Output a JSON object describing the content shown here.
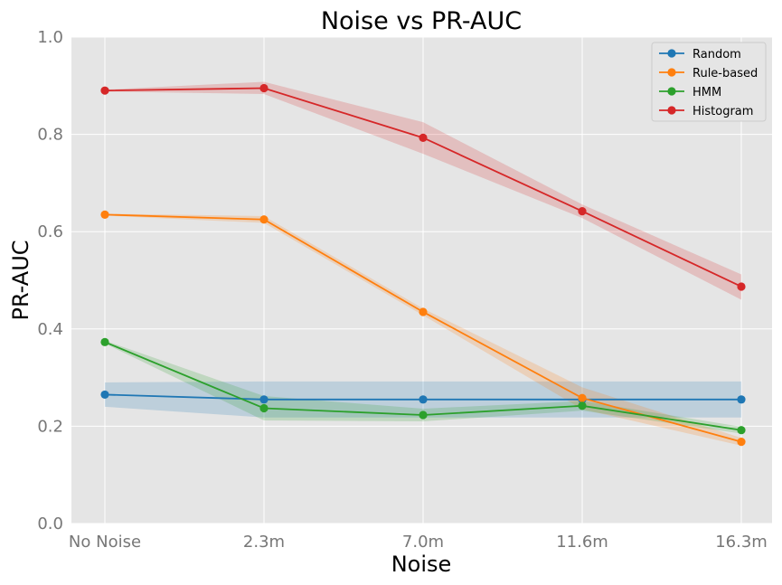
{
  "chart_data": {
    "type": "line",
    "title": "Noise vs PR-AUC",
    "xlabel": "Noise",
    "ylabel": "PR-AUC",
    "categories": [
      "No Noise",
      "2.3m",
      "7.0m",
      "11.6m",
      "16.3m"
    ],
    "ylim": [
      0.0,
      1.0
    ],
    "yticks": [
      "0.0",
      "0.2",
      "0.4",
      "0.6",
      "0.8",
      "1.0"
    ],
    "grid": true,
    "legend_position": "top-right",
    "series": [
      {
        "name": "Random",
        "color": "#1f77b4",
        "values": [
          0.265,
          0.255,
          0.255,
          0.255,
          0.255
        ],
        "lower": [
          0.24,
          0.218,
          0.218,
          0.218,
          0.218
        ],
        "upper": [
          0.29,
          0.292,
          0.292,
          0.292,
          0.292
        ]
      },
      {
        "name": "Rule-based",
        "color": "#ff7f0e",
        "values": [
          0.635,
          0.625,
          0.435,
          0.258,
          0.168
        ],
        "lower": [
          0.633,
          0.618,
          0.428,
          0.235,
          0.16
        ],
        "upper": [
          0.637,
          0.632,
          0.442,
          0.28,
          0.176
        ]
      },
      {
        "name": "HMM",
        "color": "#2ca02c",
        "values": [
          0.373,
          0.237,
          0.223,
          0.242,
          0.192
        ],
        "lower": [
          0.37,
          0.212,
          0.21,
          0.232,
          0.185
        ],
        "upper": [
          0.376,
          0.262,
          0.236,
          0.252,
          0.199
        ]
      },
      {
        "name": "Histogram",
        "color": "#d62728",
        "values": [
          0.89,
          0.895,
          0.793,
          0.642,
          0.487
        ],
        "lower": [
          0.888,
          0.883,
          0.76,
          0.628,
          0.46
        ],
        "upper": [
          0.892,
          0.908,
          0.825,
          0.656,
          0.512
        ]
      }
    ]
  }
}
